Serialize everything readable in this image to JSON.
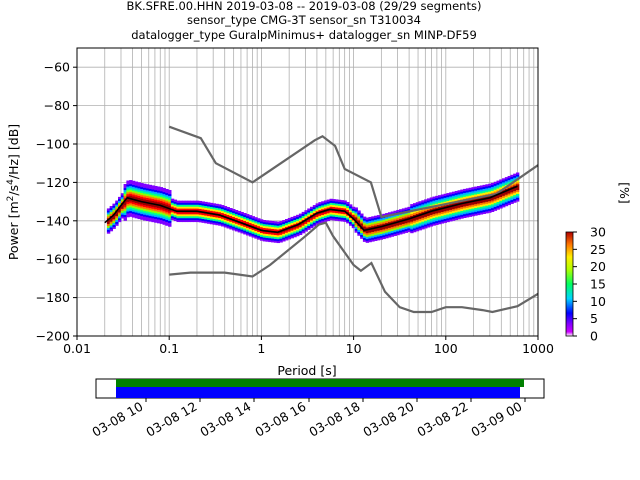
{
  "chart_data": [
    {
      "type": "heatmap",
      "title_lines": [
        "BK.SFRE.00.HHN   2019-03-08 -- 2019-03-08  (29/29 segments)",
        "sensor_type CMG-3T sensor_sn T310034",
        "datalogger_type GuralpMinimus+ datalogger_sn MINP-DF59"
      ],
      "xlabel": "Period [s]",
      "ylabel": "Power [m²/s⁴/Hz] [dB]",
      "xscale": "log",
      "xlim": [
        0.01,
        1000
      ],
      "ylim": [
        -200,
        -50
      ],
      "xticks": [
        {
          "v": 0.01,
          "label": "0.01"
        },
        {
          "v": 0.1,
          "label": "0.1"
        },
        {
          "v": 1,
          "label": "1"
        },
        {
          "v": 10,
          "label": "10"
        },
        {
          "v": 100,
          "label": "100"
        },
        {
          "v": 1000,
          "label": "1000"
        }
      ],
      "yticks": [
        {
          "v": -60,
          "label": "−60"
        },
        {
          "v": -80,
          "label": "−80"
        },
        {
          "v": -100,
          "label": "−100"
        },
        {
          "v": -120,
          "label": "−120"
        },
        {
          "v": -140,
          "label": "−140"
        },
        {
          "v": -160,
          "label": "−160"
        },
        {
          "v": -180,
          "label": "−180"
        },
        {
          "v": -200,
          "label": "−200"
        }
      ],
      "grid": true,
      "colors": {
        "noise_model": "#666666",
        "mean_line": "#000000",
        "grid": "#b0b0b0"
      },
      "high_noise_model": [
        [
          0.1,
          -91
        ],
        [
          0.22,
          -97
        ],
        [
          0.32,
          -110
        ],
        [
          0.8,
          -120
        ],
        [
          3.8,
          -98
        ],
        [
          4.6,
          -96
        ],
        [
          6.3,
          -101
        ],
        [
          8,
          -113
        ],
        [
          15.4,
          -120
        ],
        [
          20,
          -138
        ],
        [
          354,
          -126
        ],
        [
          1000,
          -111
        ]
      ],
      "low_noise_model": [
        [
          0.1,
          -168
        ],
        [
          0.17,
          -167
        ],
        [
          0.4,
          -167
        ],
        [
          0.8,
          -169
        ],
        [
          1.24,
          -163
        ],
        [
          3.0,
          -148
        ],
        [
          4.2,
          -142
        ],
        [
          5,
          -141
        ],
        [
          6,
          -148
        ],
        [
          10,
          -163
        ],
        [
          12,
          -166
        ],
        [
          15.6,
          -162
        ],
        [
          21.9,
          -177
        ],
        [
          31.6,
          -185
        ],
        [
          45,
          -187.5
        ],
        [
          70,
          -187.5
        ],
        [
          100,
          -185
        ],
        [
          150,
          -185
        ],
        [
          250,
          -186.5
        ],
        [
          320,
          -187.5
        ],
        [
          600,
          -184.5
        ],
        [
          1000,
          -178
        ]
      ],
      "mean_psd": [
        [
          0.02,
          -141
        ],
        [
          0.025,
          -137
        ],
        [
          0.03,
          -132
        ],
        [
          0.035,
          -128
        ],
        [
          0.05,
          -130
        ],
        [
          0.08,
          -132
        ],
        [
          0.12,
          -135
        ],
        [
          0.2,
          -135
        ],
        [
          0.35,
          -137
        ],
        [
          0.6,
          -141
        ],
        [
          1,
          -145
        ],
        [
          1.5,
          -146
        ],
        [
          2.5,
          -142
        ],
        [
          4,
          -136
        ],
        [
          5.5,
          -134
        ],
        [
          8,
          -135
        ],
        [
          10,
          -139
        ],
        [
          13,
          -145
        ],
        [
          20,
          -143
        ],
        [
          40,
          -139
        ],
        [
          70,
          -135
        ],
        [
          150,
          -131
        ],
        [
          300,
          -128
        ],
        [
          600,
          -122
        ]
      ],
      "color_scale": {
        "label": "[%]",
        "min": 0,
        "max": 30,
        "ticks": [
          "0",
          "5",
          "10",
          "15",
          "20",
          "25",
          "30"
        ]
      }
    },
    {
      "type": "timeline",
      "tick_labels": [
        "03-08 10",
        "03-08 12",
        "03-08 14",
        "03-08 16",
        "03-08 18",
        "03-08 20",
        "03-08 22",
        "03-09 00"
      ],
      "colors": {
        "available": "#008000",
        "used": "#0000ff"
      }
    }
  ]
}
